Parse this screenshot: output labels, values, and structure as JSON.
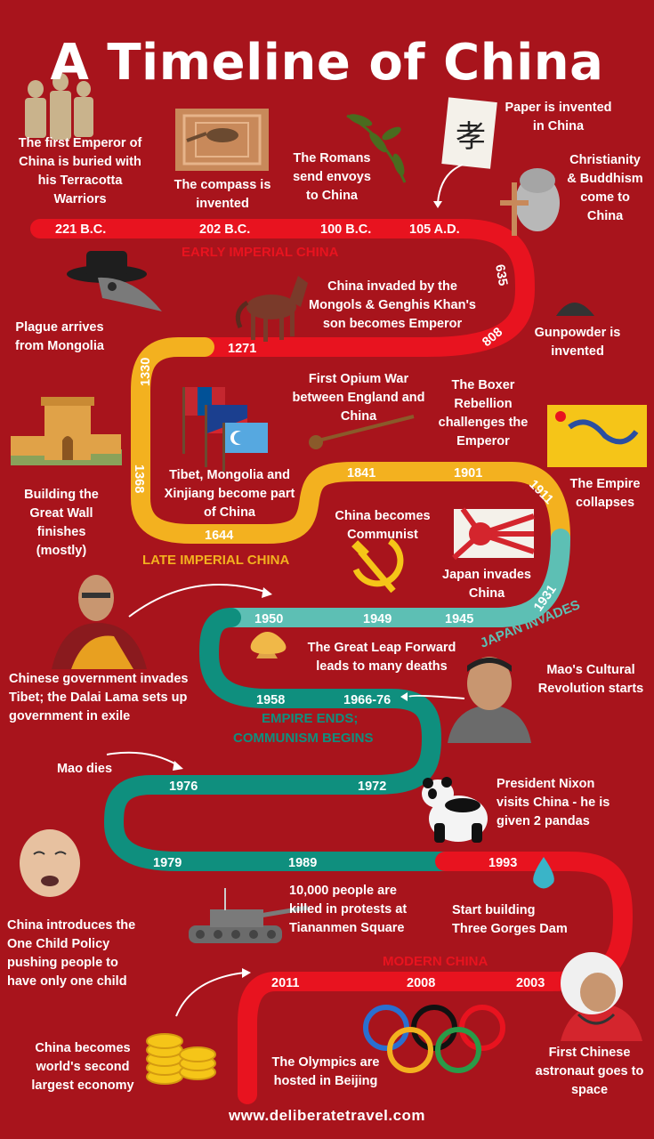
{
  "title": "A Timeline of China",
  "footer": "www.deliberatetravel.com",
  "colors": {
    "background": "#a8141c",
    "early_imperial": "#e8131f",
    "late_imperial": "#f3b11f",
    "japan_invades": "#5dbfb4",
    "communism": "#0f8f7e",
    "modern": "#e8131f"
  },
  "eras": {
    "early": "EARLY IMPERIAL CHINA",
    "late": "LATE IMPERIAL CHINA",
    "japan": "JAPAN INVADES",
    "empire_ends_1": "EMPIRE ENDS;",
    "empire_ends_2": "COMMUNISM BEGINS",
    "modern": "MODERN CHINA"
  },
  "years": {
    "y221bc": "221 B.C.",
    "y202bc": "202 B.C.",
    "y100bc": "100 B.C.",
    "y105ad": "105 A.D.",
    "y635": "635",
    "y808": "808",
    "y1271": "1271",
    "y1330": "1330",
    "y1368": "1368",
    "y1644": "1644",
    "y1841": "1841",
    "y1901": "1901",
    "y1911": "1911",
    "y1931": "1931",
    "y1945": "1945",
    "y1949": "1949",
    "y1950": "1950",
    "y1958": "1958",
    "y196676": "1966-76",
    "y1972": "1972",
    "y1976": "1976",
    "y1979": "1979",
    "y1989": "1989",
    "y1993": "1993",
    "y2003": "2003",
    "y2008": "2008",
    "y2011": "2011"
  },
  "events": {
    "terracotta": "The first Emperor of\nChina is buried with\nhis Terracotta\nWarriors",
    "compass": "The compass is\ninvented",
    "romans": "The Romans\nsend envoys\nto China",
    "paper": "Paper is invented\nin China",
    "christianity": "Christianity\n& Buddhism\ncome to\nChina",
    "mongols": "China invaded by the\nMongols & Genghis Khan's\nson becomes Emperor",
    "plague": "Plague arrives\nfrom Mongolia",
    "gunpowder": "Gunpowder is\ninvented",
    "opium": "First Opium War\nbetween England and\nChina",
    "boxer": "The Boxer\nRebellion\nchallenges the\nEmperor",
    "tibet": "Tibet, Mongolia and\nXinjiang become part\nof China",
    "empire_collapses": "The Empire\ncollapses",
    "great_wall": "Building the\nGreat Wall\nfinishes\n(mostly)",
    "communist": "China becomes\nCommunist",
    "japan": "Japan invades\nChina",
    "leap": "The Great Leap Forward\nleads to many deaths",
    "dalai": "Chinese government invades\nTibet; the Dalai Lama sets up\ngovernment in exile",
    "cultural": "Mao's Cultural\nRevolution starts",
    "mao_dies": "Mao dies",
    "nixon": "President Nixon\nvisits China - he is\ngiven 2 pandas",
    "one_child": "China introduces the\nOne Child Policy\npushing people to\nhave only one child",
    "tiananmen": "10,000 people are\nkilled in protests at\nTiananmen Square",
    "three_gorges": "Start building\nThree Gorges Dam",
    "economy": "China becomes\nworld's second\nlargest economy",
    "olympics": "The Olympics are\nhosted in Beijing",
    "astronaut": "First Chinese\nastronaut goes to\nspace"
  }
}
